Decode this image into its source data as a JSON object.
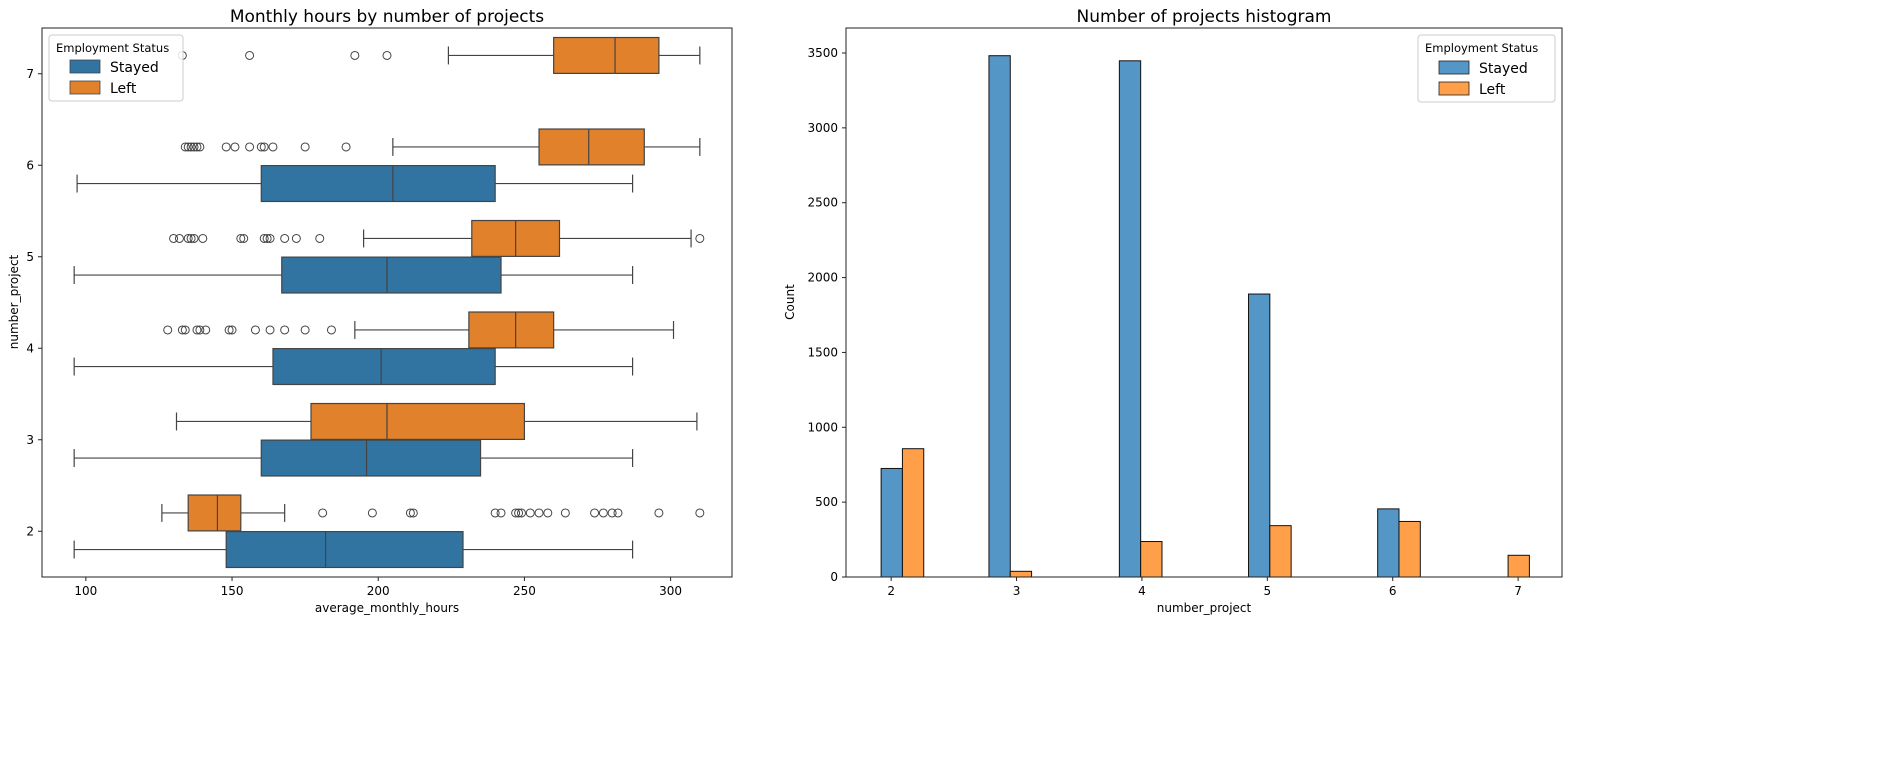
{
  "chart_data": [
    {
      "type": "boxplot",
      "orientation": "horizontal",
      "title": "Monthly hours by number of projects",
      "xlabel": "average_monthly_hours",
      "ylabel": "number_project",
      "xlim": [
        85,
        321
      ],
      "ylim": [
        1.5,
        7.5
      ],
      "xticks": [
        "100",
        "150",
        "200",
        "250",
        "300"
      ],
      "yticks": [
        "2",
        "3",
        "4",
        "5",
        "6",
        "7"
      ],
      "grid": false,
      "legend": {
        "title": "Employment Status",
        "placement": "top-left",
        "entries": [
          "Stayed",
          "Left"
        ]
      },
      "colors": {
        "Stayed": "#3274a1",
        "Left": "#e1812c"
      },
      "categories": [
        2,
        3,
        4,
        5,
        6,
        7
      ],
      "series": [
        {
          "name": "Stayed",
          "boxes": [
            {
              "category": 2,
              "whisker_low": 96,
              "q1": 148,
              "median": 182,
              "q3": 229,
              "whisker_high": 287,
              "outliers": []
            },
            {
              "category": 3,
              "whisker_low": 96,
              "q1": 160,
              "median": 196,
              "q3": 235,
              "whisker_high": 287,
              "outliers": []
            },
            {
              "category": 4,
              "whisker_low": 96,
              "q1": 164,
              "median": 201,
              "q3": 240,
              "whisker_high": 287,
              "outliers": []
            },
            {
              "category": 5,
              "whisker_low": 96,
              "q1": 167,
              "median": 203,
              "q3": 242,
              "whisker_high": 287,
              "outliers": []
            },
            {
              "category": 6,
              "whisker_low": 97,
              "q1": 160,
              "median": 205,
              "q3": 240,
              "whisker_high": 287,
              "outliers": []
            }
          ]
        },
        {
          "name": "Left",
          "boxes": [
            {
              "category": 2,
              "whisker_low": 126,
              "q1": 135,
              "median": 145,
              "q3": 153,
              "whisker_high": 168,
              "outliers": [
                181,
                198,
                211,
                212,
                240,
                242,
                247,
                248,
                249,
                252,
                255,
                258,
                264,
                274,
                277,
                280,
                282,
                296,
                310
              ]
            },
            {
              "category": 3,
              "whisker_low": 131,
              "q1": 177,
              "median": 203,
              "q3": 250,
              "whisker_high": 309,
              "outliers": []
            },
            {
              "category": 4,
              "whisker_low": 192,
              "q1": 231,
              "median": 247,
              "q3": 260,
              "whisker_high": 301,
              "outliers": [
                128,
                133,
                134,
                138,
                139,
                141,
                149,
                150,
                158,
                163,
                168,
                175,
                184
              ]
            },
            {
              "category": 5,
              "whisker_low": 195,
              "q1": 232,
              "median": 247,
              "q3": 262,
              "whisker_high": 307,
              "outliers": [
                130,
                132,
                135,
                136,
                137,
                140,
                153,
                154,
                161,
                162,
                163,
                168,
                172,
                180,
                310
              ]
            },
            {
              "category": 6,
              "whisker_low": 205,
              "q1": 255,
              "median": 272,
              "q3": 291,
              "whisker_high": 310,
              "outliers": [
                134,
                135,
                136,
                137,
                138,
                139,
                148,
                151,
                156,
                160,
                161,
                164,
                175,
                189
              ]
            },
            {
              "category": 7,
              "whisker_low": 224,
              "q1": 260,
              "median": 281,
              "q3": 296,
              "whisker_high": 310,
              "outliers": [
                133,
                156,
                192,
                203
              ]
            }
          ]
        }
      ]
    },
    {
      "type": "bar",
      "title": "Number of projects histogram",
      "xlabel": "number_project",
      "ylabel": "Count",
      "xlim": [
        1.64,
        7.35
      ],
      "ylim": [
        0,
        3667
      ],
      "xticks": [
        "2",
        "3",
        "4",
        "5",
        "6",
        "7"
      ],
      "yticks": [
        "0",
        "500",
        "1000",
        "1500",
        "2000",
        "2500",
        "3000",
        "3500"
      ],
      "grid": false,
      "legend": {
        "title": "Employment Status",
        "placement": "top-right",
        "entries": [
          "Stayed",
          "Left"
        ]
      },
      "colors": {
        "Stayed": "#5497c6",
        "Left": "#ff9f4a"
      },
      "categories": [
        2,
        3,
        4,
        5,
        6,
        7
      ],
      "bin_ranges": [
        [
          1.92,
          2.26
        ],
        [
          2.78,
          3.12
        ],
        [
          3.82,
          4.16
        ],
        [
          4.85,
          5.19
        ],
        [
          5.88,
          6.22
        ],
        [
          6.75,
          7.09
        ]
      ],
      "series": [
        {
          "name": "Stayed",
          "values": [
            725,
            3482,
            3448,
            1890,
            455,
            0
          ]
        },
        {
          "name": "Left",
          "values": [
            857,
            38,
            237,
            343,
            371,
            145
          ]
        }
      ]
    }
  ]
}
